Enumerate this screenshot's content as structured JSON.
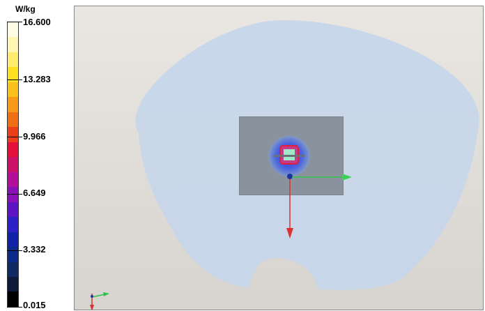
{
  "legend": {
    "unit": "W/kg",
    "ticks": [
      "16.600",
      "13.283",
      "9.966",
      "6.649",
      "3.332",
      "0.015"
    ],
    "colors": [
      "#fffce6",
      "#fff6b0",
      "#ffec6e",
      "#ffdf1e",
      "#fbc11a",
      "#f89a17",
      "#f06f14",
      "#ec3e1a",
      "#e4103a",
      "#cd1068",
      "#b40f9a",
      "#8a10b8",
      "#5d14c4",
      "#2d20c8",
      "#0f22a8",
      "#0c2988",
      "#102a64",
      "#0d1a3a",
      "#000000"
    ]
  },
  "viewport": {
    "phantom_color": "#c7d6ea",
    "plate_color": "#8a929e",
    "axes": {
      "x_color": "#2fc24a",
      "y_color": "#d9312f",
      "z_color": "#1b34a0"
    }
  }
}
